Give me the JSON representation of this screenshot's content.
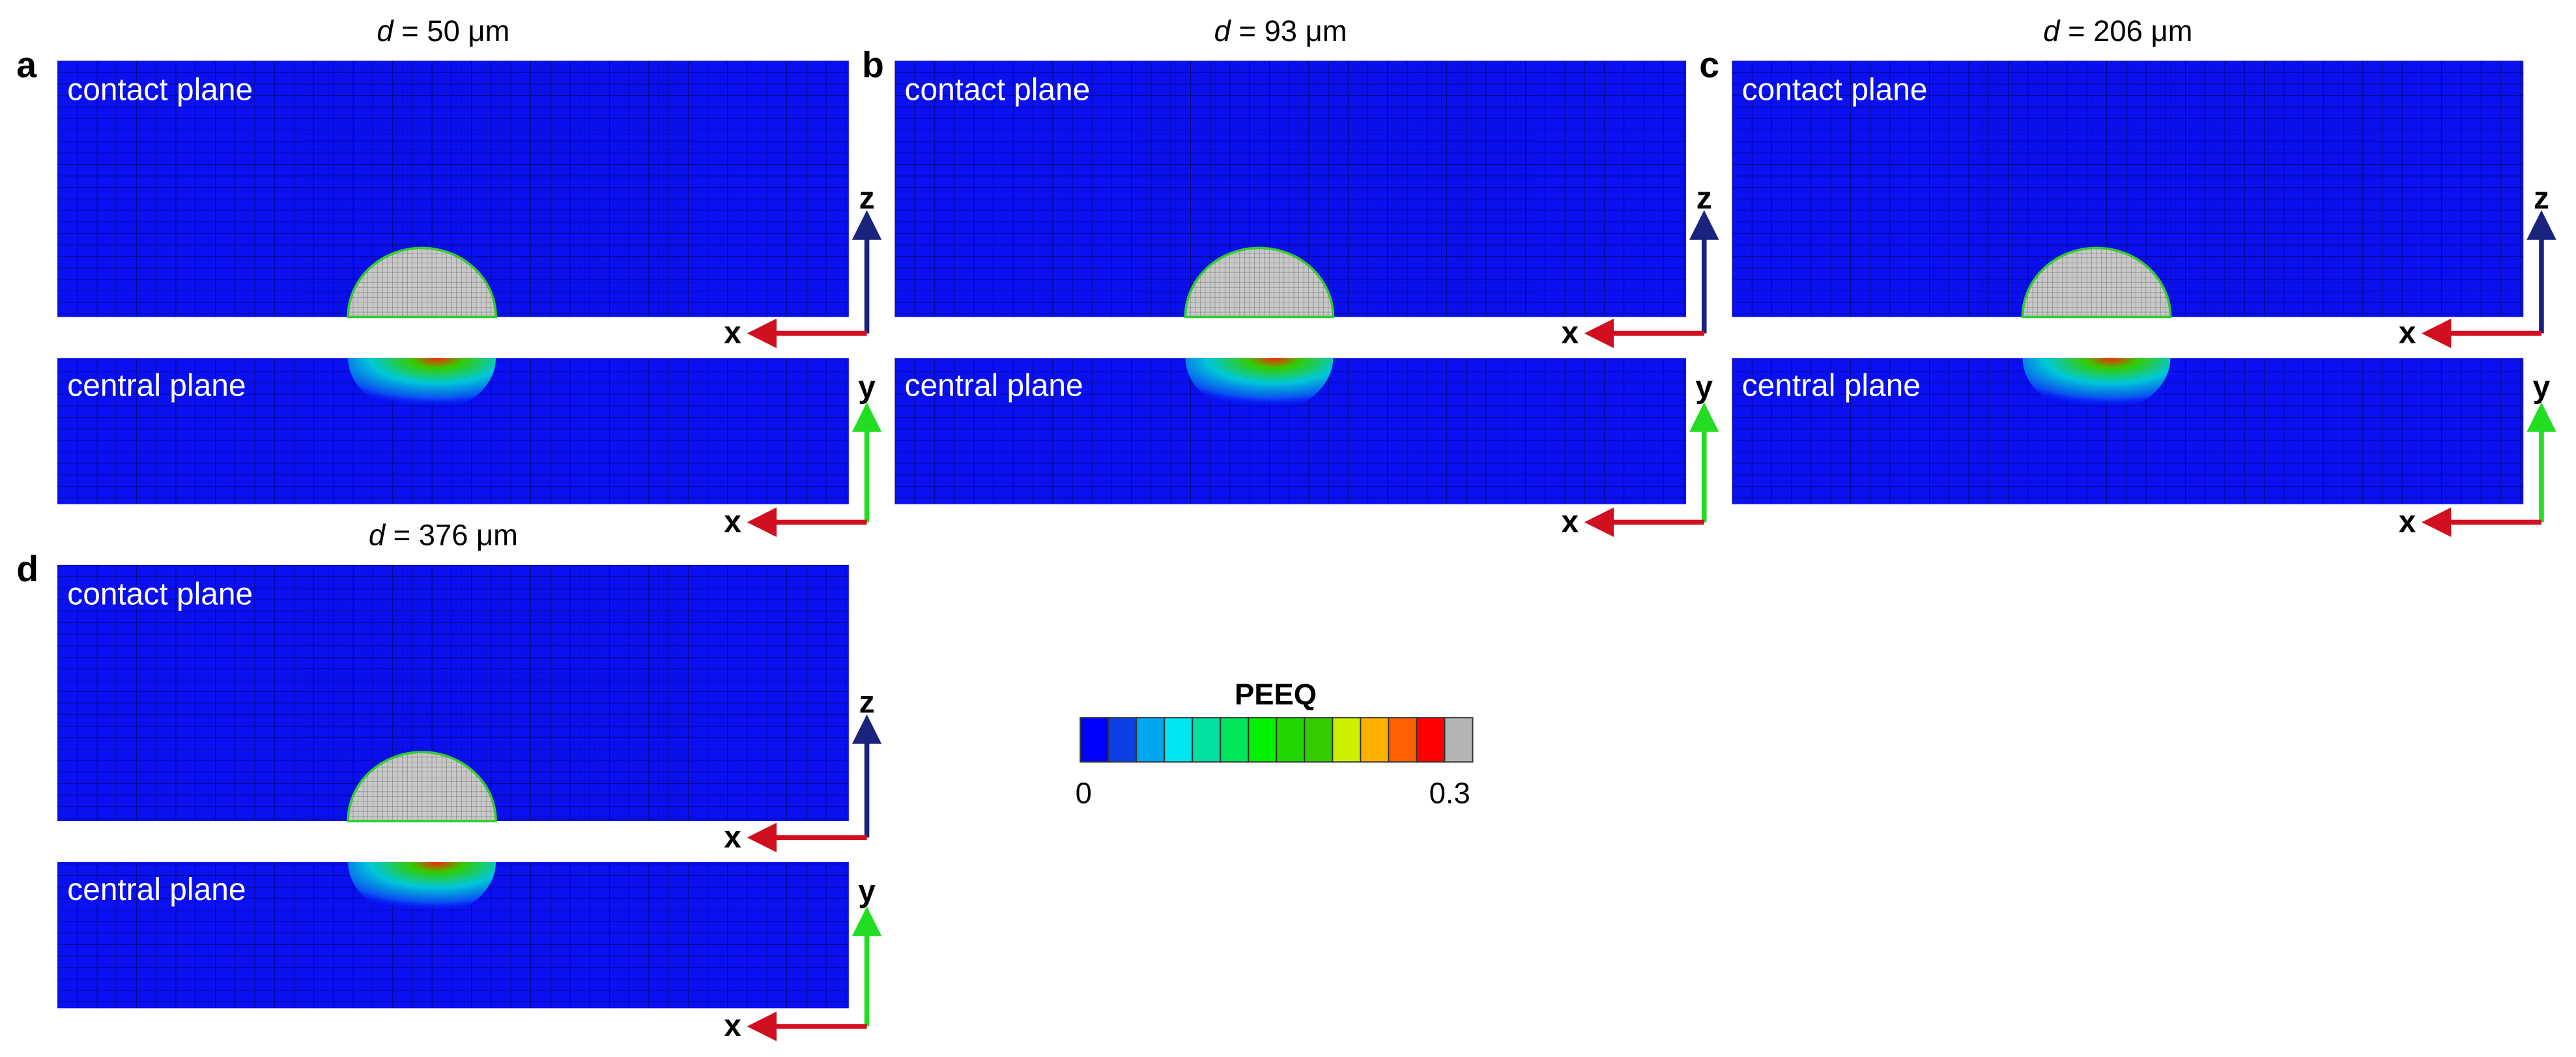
{
  "panels": [
    {
      "label": "a",
      "title_variable": "d",
      "title_value": "= 50 μm",
      "contact_label": "contact plane",
      "central_label": "central plane",
      "axis_labels": {
        "contact_horizontal": "x",
        "contact_vertical": "z",
        "central_horizontal": "x",
        "central_vertical": "y"
      }
    },
    {
      "label": "b",
      "title_variable": "d",
      "title_value": "= 93 μm",
      "contact_label": "contact plane",
      "central_label": "central plane",
      "axis_labels": {
        "contact_horizontal": "x",
        "contact_vertical": "z",
        "central_horizontal": "x",
        "central_vertical": "y"
      }
    },
    {
      "label": "c",
      "title_variable": "d",
      "title_value": "= 206 μm",
      "contact_label": "contact plane",
      "central_label": "central plane",
      "axis_labels": {
        "contact_horizontal": "x",
        "contact_vertical": "z",
        "central_horizontal": "x",
        "central_vertical": "y"
      }
    },
    {
      "label": "d",
      "title_variable": "d",
      "title_value": "= 376 μm",
      "contact_label": "contact plane",
      "central_label": "central plane",
      "axis_labels": {
        "contact_horizontal": "x",
        "contact_vertical": "z",
        "central_horizontal": "x",
        "central_vertical": "y"
      }
    }
  ],
  "colorbar": {
    "title": "PEEQ",
    "min_label": "0",
    "max_label": "0.3",
    "colors": [
      "#0000ff",
      "#0b3fe6",
      "#00a6f0",
      "#00e6f0",
      "#00dfa0",
      "#00e65a",
      "#00f000",
      "#1ed800",
      "#33cc00",
      "#ccf000",
      "#ffb000",
      "#ff6000",
      "#ff0000",
      "#b4b4b4"
    ]
  }
}
